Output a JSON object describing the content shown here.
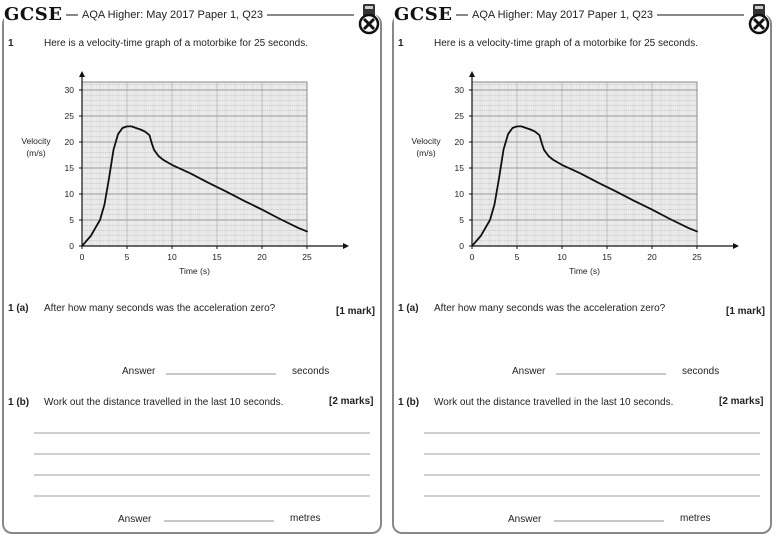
{
  "cards": [
    {
      "logo": "GCSE",
      "header_title": "AQA Higher: May 2017 Paper 1, Q23",
      "q1_number": "1",
      "q1_text": "Here is a velocity-time graph of a motorbike for 25 seconds.",
      "qa_number": "1 (a)",
      "qa_text": "After how many seconds was the acceleration zero?",
      "qa_marks": "[1 mark]",
      "qa_answer_label": "Answer",
      "qa_unit": "seconds",
      "qb_number": "1 (b)",
      "qb_text": "Work out the distance travelled in the last 10 seconds.",
      "qb_marks": "[2 marks]",
      "qb_answer_label": "Answer",
      "qb_unit": "metres"
    },
    {
      "logo": "GCSE",
      "header_title": "AQA Higher: May 2017 Paper 1, Q23",
      "q1_number": "1",
      "q1_text": "Here is a velocity-time graph of a motorbike for 25 seconds.",
      "qa_number": "1 (a)",
      "qa_text": "After how many seconds was the acceleration zero?",
      "qa_marks": "[1 mark]",
      "qa_answer_label": "Answer",
      "qa_unit": "seconds",
      "qb_number": "1 (b)",
      "qb_text": "Work out the distance travelled in the last 10 seconds.",
      "qb_marks": "[2 marks]",
      "qb_answer_label": "Answer",
      "qb_unit": "metres"
    }
  ],
  "chart_data": {
    "type": "line",
    "title": "",
    "xlabel": "Time (s)",
    "ylabel": "Velocity (m/s)",
    "xlim": [
      0,
      25
    ],
    "ylim": [
      0,
      30
    ],
    "x_ticks": [
      0,
      5,
      10,
      15,
      20,
      25
    ],
    "y_ticks": [
      0,
      5,
      10,
      15,
      20,
      25,
      30
    ],
    "grid": true,
    "series": [
      {
        "x": [
          0,
          1,
          2,
          2.5,
          3,
          3.5,
          4,
          4.5,
          5,
          5.5,
          6,
          6.5,
          7,
          7.5,
          7.8,
          8,
          8.5,
          9,
          10,
          12,
          14,
          16,
          18,
          20,
          22,
          24,
          25
        ],
        "y": [
          0,
          2,
          5,
          8,
          13,
          18.5,
          21.5,
          22.7,
          23,
          23,
          22.7,
          22.4,
          22,
          21.3,
          19.5,
          18.5,
          17.3,
          16.6,
          15.6,
          14,
          12.2,
          10.5,
          8.7,
          7,
          5.2,
          3.5,
          2.8
        ]
      }
    ]
  },
  "colors": {
    "frame": "#888888",
    "grid_major": "#999999",
    "grid_minor": "#dddddd",
    "curve": "#111111"
  },
  "icons": [
    "gcse-logo",
    "calculator-forbidden-icon"
  ]
}
